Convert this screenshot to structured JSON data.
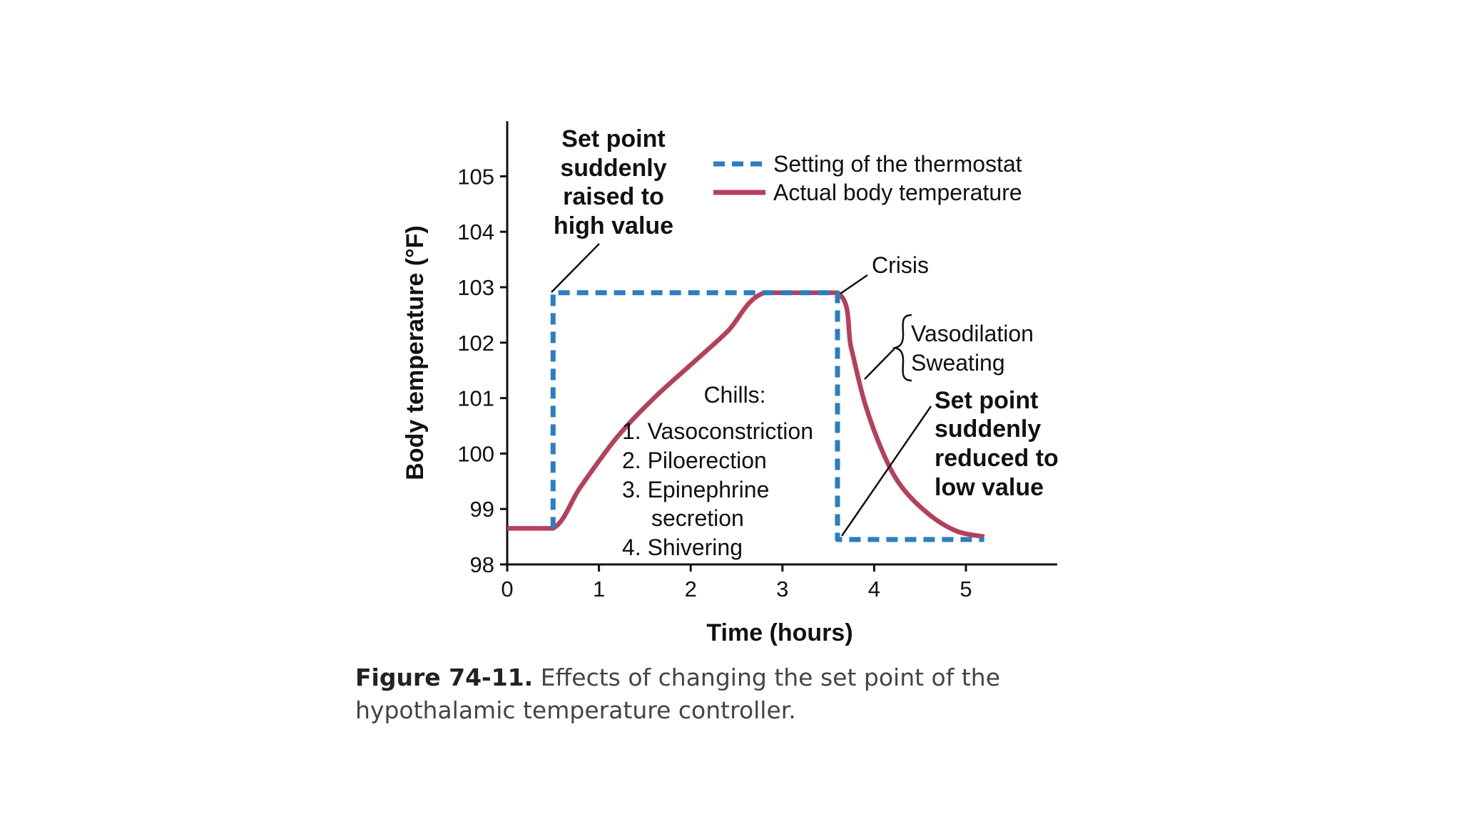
{
  "chart_data": {
    "type": "line",
    "xlabel": "Time (hours)",
    "ylabel": "Body temperature (°F)",
    "xlim": [
      0,
      6
    ],
    "ylim": [
      98,
      106
    ],
    "x_ticks": [
      "0",
      "1",
      "2",
      "3",
      "4",
      "5"
    ],
    "y_ticks": [
      "98",
      "99",
      "100",
      "101",
      "102",
      "103",
      "104",
      "105"
    ],
    "legend_position": "top-right",
    "series": [
      {
        "name": "Setting of the thermostat",
        "color": "#2b7ec1",
        "style": "dashed",
        "points": [
          [
            0.5,
            98.65
          ],
          [
            0.5,
            102.9
          ],
          [
            3.6,
            102.9
          ],
          [
            3.6,
            98.45
          ],
          [
            5.2,
            98.45
          ]
        ]
      },
      {
        "name": "Actual body temperature",
        "color": "#b5405a",
        "style": "solid",
        "points": [
          [
            0,
            98.65
          ],
          [
            0.5,
            98.65
          ],
          [
            0.8,
            99.4
          ],
          [
            1.2,
            100.3
          ],
          [
            1.6,
            101.0
          ],
          [
            2.0,
            101.6
          ],
          [
            2.4,
            102.2
          ],
          [
            2.8,
            102.9
          ],
          [
            3.6,
            102.9
          ],
          [
            3.75,
            101.9
          ],
          [
            3.9,
            100.9
          ],
          [
            4.1,
            100.0
          ],
          [
            4.3,
            99.4
          ],
          [
            4.6,
            98.9
          ],
          [
            4.9,
            98.6
          ],
          [
            5.2,
            98.5
          ]
        ]
      }
    ],
    "annotations": {
      "set_point_raised": [
        "Set point",
        "suddenly",
        "raised to",
        "high value"
      ],
      "crisis": "Crisis",
      "vasodilation": [
        "Vasodilation",
        "Sweating"
      ],
      "set_point_reduced": [
        "Set point",
        "suddenly",
        "reduced to",
        "low value"
      ],
      "chills_title": "Chills:",
      "chills_items": [
        "1. Vasoconstriction",
        "2. Piloerection",
        "3. Epinephrine",
        "secretion",
        "4. Shivering"
      ]
    }
  },
  "caption": {
    "label": "Figure 74-11.",
    "text": "Effects of changing the set point of the hypothalamic temperature controller."
  }
}
